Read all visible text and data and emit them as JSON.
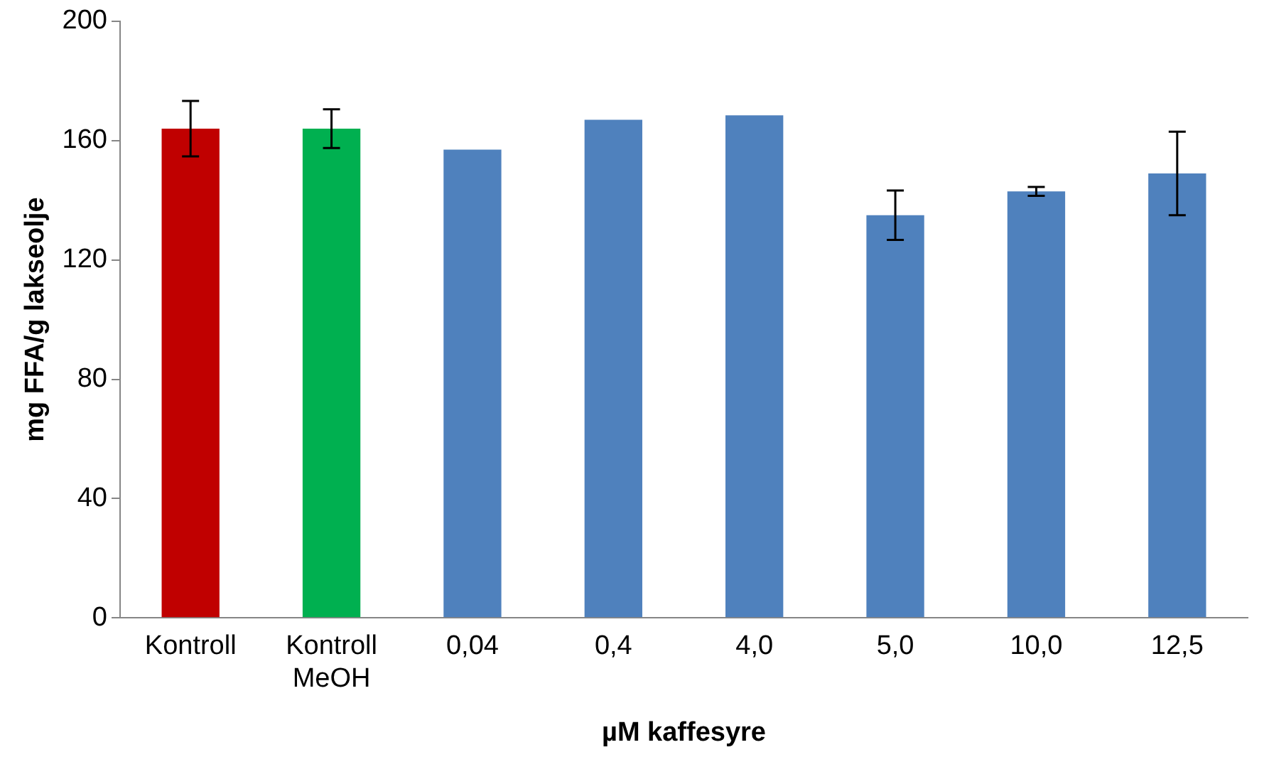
{
  "chart_data": {
    "type": "bar",
    "xlabel": "µM kaffesyre",
    "ylabel": "mg FFA/g lakseolje",
    "categories": [
      "Kontroll",
      "Kontroll MeOH",
      "0,04",
      "0,4",
      "4,0",
      "5,0",
      "10,0",
      "12,5"
    ],
    "values": [
      164,
      164,
      157,
      167,
      168.5,
      135,
      143,
      149
    ],
    "colors": [
      "#c00000",
      "#00b050",
      "#4f81bd",
      "#4f81bd",
      "#4f81bd",
      "#4f81bd",
      "#4f81bd",
      "#4f81bd"
    ],
    "errors": [
      9.3,
      6.5,
      null,
      null,
      null,
      8.3,
      1.5,
      14
    ],
    "ylim": [
      0,
      200
    ],
    "yticks": [
      0,
      40,
      80,
      120,
      160,
      200
    ],
    "grid": false,
    "legend": false
  }
}
